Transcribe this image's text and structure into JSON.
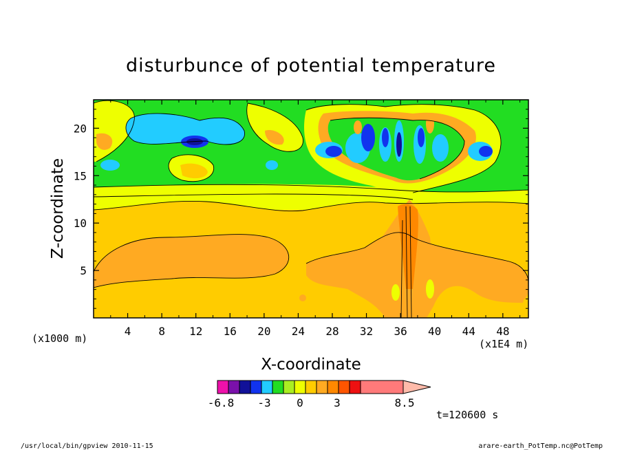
{
  "chart_data": {
    "type": "heatmap",
    "title": "disturbunce of potential temperature",
    "xlabel": "X-coordinate",
    "ylabel": "Z-coordinate",
    "x_unit_left": "(x1000 m)",
    "x_unit_right": "(x1E4 m)",
    "xlim": [
      0,
      51
    ],
    "ylim": [
      0,
      23
    ],
    "x_ticks": [
      "4",
      "8",
      "12",
      "16",
      "20",
      "24",
      "28",
      "32",
      "36",
      "40",
      "44",
      "48"
    ],
    "y_ticks": [
      "5",
      "10",
      "15",
      "20"
    ],
    "time_label": "t=120600 s",
    "colorbar": {
      "colors": [
        "#ee11aa",
        "#7a11aa",
        "#111199",
        "#1133ee",
        "#22ccff",
        "#22dd22",
        "#aaee22",
        "#eeff00",
        "#ffcc00",
        "#ffaa22",
        "#ff8800",
        "#ff5500",
        "#ee1111",
        "#ff7a7a",
        "#ffbbaa"
      ],
      "tick_labels": [
        "-6.8",
        "-3",
        "0",
        "3",
        "8.5"
      ]
    },
    "footer_left": "/usr/local/bin/gpview   2010-11-15",
    "footer_right": "arare-earth_PotTemp.nc@PotTemp"
  }
}
